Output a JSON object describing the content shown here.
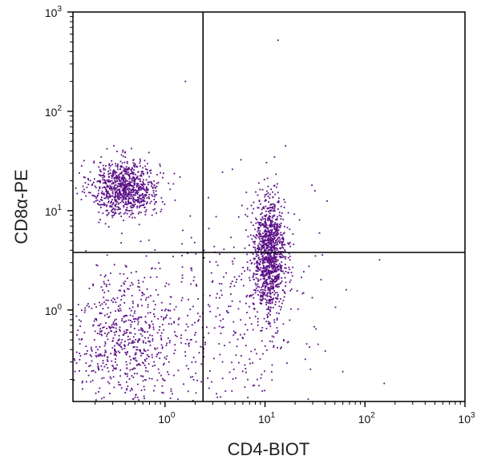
{
  "chart_data": {
    "type": "scatter",
    "xlabel": "CD4-BIOT",
    "ylabel": "CD8α-PE",
    "xscale": "log",
    "yscale": "log",
    "xlim": [
      0.12,
      1000
    ],
    "ylim": [
      0.12,
      1000
    ],
    "x_ticks": [
      {
        "base": "10",
        "exp": "0"
      },
      {
        "base": "10",
        "exp": "1"
      },
      {
        "base": "10",
        "exp": "2"
      },
      {
        "base": "10",
        "exp": "3"
      }
    ],
    "y_ticks": [
      {
        "base": "10",
        "exp": "0"
      },
      {
        "base": "10",
        "exp": "1"
      },
      {
        "base": "10",
        "exp": "2"
      },
      {
        "base": "10",
        "exp": "3"
      }
    ],
    "quadrant_gate": {
      "x": 2.4,
      "y": 3.8
    },
    "point_color": "#5b0f86",
    "grid": false,
    "legend": "none",
    "populations": [
      {
        "label": "",
        "center": [
          0.4,
          17
        ],
        "spread_log": [
          0.17,
          0.14
        ],
        "count": 900
      },
      {
        "label": "",
        "center": [
          11,
          3.5
        ],
        "spread_log": [
          0.08,
          0.3
        ],
        "count": 1100
      },
      {
        "label": "",
        "center": [
          0.4,
          0.5
        ],
        "spread_log": [
          0.3,
          0.35
        ],
        "count": 700
      },
      {
        "label": "",
        "center": [
          5.0,
          1.0
        ],
        "spread_log": [
          0.4,
          0.55
        ],
        "count": 350
      }
    ],
    "outliers": [
      [
        1.6,
        200
      ],
      [
        13.5,
        520
      ],
      [
        140,
        3.2
      ],
      [
        60,
        0.24
      ],
      [
        65,
        1.6
      ]
    ]
  }
}
